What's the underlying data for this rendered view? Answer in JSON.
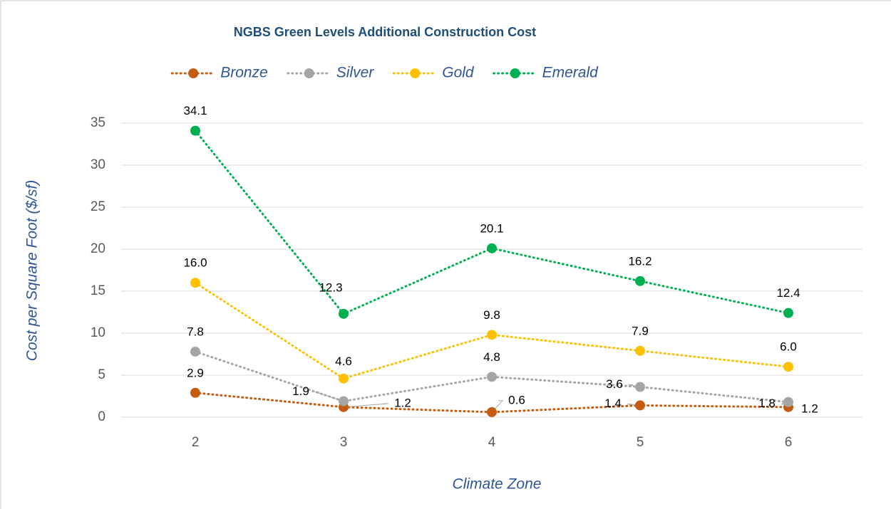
{
  "chart_data": {
    "type": "line",
    "title": "NGBS Green Levels Additional Construction Cost",
    "x_label": "Climate Zone",
    "y_label": "Cost per Square Foot ($/sf)",
    "categories": [
      "2",
      "3",
      "4",
      "5",
      "6"
    ],
    "series": [
      {
        "name": "Bronze",
        "color": "#c55a11",
        "values": [
          2.9,
          1.2,
          0.6,
          1.4,
          1.2
        ],
        "value_labels": [
          "2.9",
          "1.2",
          "0.6",
          "1.4",
          "1.2"
        ]
      },
      {
        "name": "Silver",
        "color": "#a5a5a5",
        "values": [
          7.8,
          1.9,
          4.8,
          3.6,
          1.8
        ],
        "value_labels": [
          "7.8",
          "1.9",
          "4.8",
          "3.6",
          "1.8"
        ]
      },
      {
        "name": "Gold",
        "color": "#ffc000",
        "values": [
          16.0,
          4.6,
          9.8,
          7.9,
          6.0
        ],
        "value_labels": [
          "16.0",
          "4.6",
          "9.8",
          "7.9",
          "6.0"
        ]
      },
      {
        "name": "Emerald",
        "color": "#00b050",
        "values": [
          34.1,
          12.3,
          20.1,
          16.2,
          12.4
        ],
        "value_labels": [
          "34.1",
          "12.3",
          "20.1",
          "16.2",
          "12.4"
        ]
      }
    ],
    "ylim": [
      0,
      35
    ],
    "yticks": [
      0,
      5,
      10,
      15,
      20,
      25,
      30,
      35
    ],
    "grid": true,
    "legend": "top"
  }
}
